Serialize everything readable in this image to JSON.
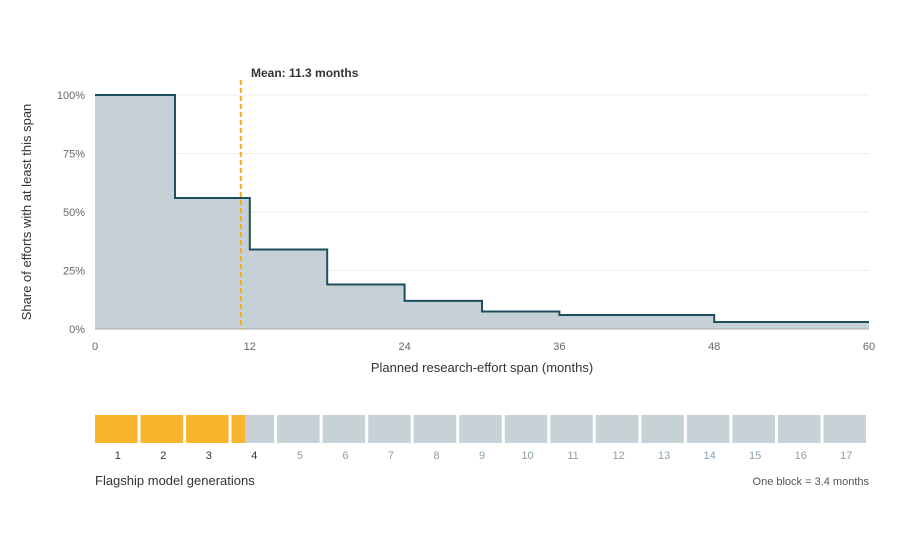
{
  "chart_data": [
    {
      "type": "area",
      "step": true,
      "ylabel": "Share of efforts with at least this span",
      "xlabel": "Planned research-effort span (months)",
      "xlim": [
        0,
        60
      ],
      "ylim": [
        0,
        1
      ],
      "x_ticks": [
        0,
        12,
        24,
        36,
        48,
        60
      ],
      "y_ticks": [
        0,
        0.25,
        0.5,
        0.75,
        1.0
      ],
      "y_tick_labels": [
        "0%",
        "25%",
        "50%",
        "75%",
        "100%"
      ],
      "grid": true,
      "series": [
        {
          "x": [
            0,
            6.2,
            12,
            18,
            24,
            30,
            36,
            48,
            60
          ],
          "values": [
            1.0,
            0.56,
            0.34,
            0.19,
            0.12,
            0.075,
            0.06,
            0.03,
            0.03
          ]
        }
      ],
      "annotation": {
        "text": "Mean: 11.3 months",
        "x": 11.3
      },
      "colors": {
        "line": "#1f4e5f",
        "fill": "#c5d1d6",
        "mean": "#f7a823",
        "grid": "#eeeeee"
      }
    },
    {
      "type": "bar",
      "title": "Flagship model generations",
      "note": "One block = 3.4 months",
      "categories": [
        "1",
        "2",
        "3",
        "4",
        "5",
        "6",
        "7",
        "8",
        "9",
        "10",
        "11",
        "12",
        "13",
        "14",
        "15",
        "16",
        "17"
      ],
      "filled_blocks": 3.32,
      "colors": {
        "filled": "#fbb42d",
        "empty": "#c8d2d6",
        "label_active": "#333333",
        "label_inactive": "#8aa0ae"
      }
    }
  ]
}
